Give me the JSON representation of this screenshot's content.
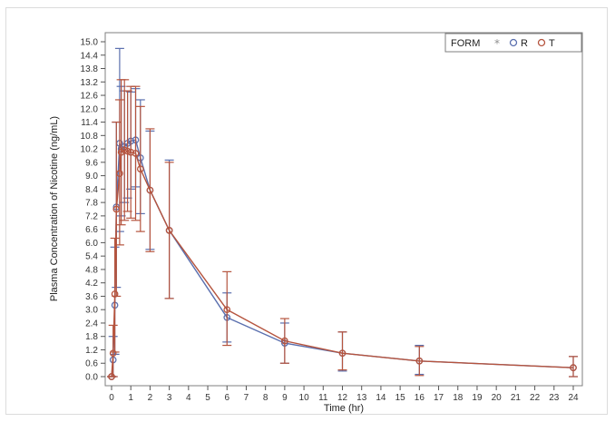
{
  "chart_data": {
    "type": "line",
    "title": "",
    "xlabel": "Time (hr)",
    "ylabel": "Plasma Concentration of Nicotine (ng/mL)",
    "xlim": [
      0,
      24
    ],
    "ylim": [
      0,
      15
    ],
    "xticks": [
      "0",
      "1",
      "2",
      "3",
      "4",
      "5",
      "6",
      "7",
      "8",
      "9",
      "10",
      "11",
      "12",
      "13",
      "14",
      "15",
      "16",
      "17",
      "18",
      "19",
      "20",
      "21",
      "22",
      "23",
      "24"
    ],
    "yticks": [
      "0.0",
      "0.6",
      "1.2",
      "1.8",
      "2.4",
      "3.0",
      "3.6",
      "4.2",
      "4.8",
      "5.4",
      "6.0",
      "6.6",
      "7.2",
      "7.8",
      "8.4",
      "9.0",
      "9.6",
      "10.2",
      "10.8",
      "11.4",
      "12.0",
      "12.6",
      "13.2",
      "13.8",
      "14.4",
      "15.0"
    ],
    "grid": false,
    "legend": {
      "title": "FORM",
      "placement": "top-right",
      "entries": [
        "R",
        "T"
      ]
    },
    "series": [
      {
        "name": "R",
        "color": "#5a6fae",
        "points": [
          {
            "x": 0.0,
            "y": 0.0,
            "lo": 0.0,
            "hi": 0.0
          },
          {
            "x": 0.08,
            "y": 0.75,
            "lo": 0.0,
            "hi": 1.8
          },
          {
            "x": 0.17,
            "y": 3.2,
            "lo": 1.0,
            "hi": 5.8
          },
          {
            "x": 0.25,
            "y": 7.6,
            "lo": 4.0,
            "hi": 11.4
          },
          {
            "x": 0.42,
            "y": 10.45,
            "lo": 6.5,
            "hi": 14.7
          },
          {
            "x": 0.5,
            "y": 10.2,
            "lo": 7.2,
            "hi": 13.0
          },
          {
            "x": 0.67,
            "y": 10.3,
            "lo": 7.8,
            "hi": 12.8
          },
          {
            "x": 0.83,
            "y": 10.45,
            "lo": 8.0,
            "hi": 12.8
          },
          {
            "x": 1.0,
            "y": 10.55,
            "lo": 8.4,
            "hi": 12.75
          },
          {
            "x": 1.25,
            "y": 10.6,
            "lo": 8.5,
            "hi": 12.9
          },
          {
            "x": 1.5,
            "y": 9.8,
            "lo": 7.3,
            "hi": 12.4
          },
          {
            "x": 2.0,
            "y": 8.35,
            "lo": 5.7,
            "hi": 11.0
          },
          {
            "x": 3.0,
            "y": 6.55,
            "lo": 3.5,
            "hi": 9.7
          },
          {
            "x": 6.0,
            "y": 2.65,
            "lo": 1.55,
            "hi": 3.75
          },
          {
            "x": 9.0,
            "y": 1.5,
            "lo": 0.6,
            "hi": 2.4
          },
          {
            "x": 12.0,
            "y": 1.05,
            "lo": 0.25,
            "hi": 2.0
          },
          {
            "x": 16.0,
            "y": 0.7,
            "lo": 0.1,
            "hi": 1.4
          },
          {
            "x": 24.0,
            "y": 0.4,
            "lo": 0.0,
            "hi": 0.9
          }
        ]
      },
      {
        "name": "T",
        "color": "#b5543e",
        "points": [
          {
            "x": 0.0,
            "y": 0.0,
            "lo": 0.0,
            "hi": 0.0
          },
          {
            "x": 0.08,
            "y": 1.05,
            "lo": 0.0,
            "hi": 2.3
          },
          {
            "x": 0.17,
            "y": 3.7,
            "lo": 1.1,
            "hi": 6.2
          },
          {
            "x": 0.25,
            "y": 7.5,
            "lo": 3.6,
            "hi": 11.4
          },
          {
            "x": 0.42,
            "y": 9.1,
            "lo": 5.9,
            "hi": 12.4
          },
          {
            "x": 0.5,
            "y": 10.05,
            "lo": 6.8,
            "hi": 13.3
          },
          {
            "x": 0.67,
            "y": 10.15,
            "lo": 7.0,
            "hi": 13.3
          },
          {
            "x": 0.83,
            "y": 10.1,
            "lo": 7.4,
            "hi": 12.8
          },
          {
            "x": 1.0,
            "y": 10.05,
            "lo": 7.1,
            "hi": 13.0
          },
          {
            "x": 1.25,
            "y": 10.0,
            "lo": 7.0,
            "hi": 13.0
          },
          {
            "x": 1.5,
            "y": 9.3,
            "lo": 6.5,
            "hi": 12.1
          },
          {
            "x": 2.0,
            "y": 8.35,
            "lo": 5.6,
            "hi": 11.1
          },
          {
            "x": 3.0,
            "y": 6.55,
            "lo": 3.5,
            "hi": 9.6
          },
          {
            "x": 6.0,
            "y": 3.0,
            "lo": 1.4,
            "hi": 4.7
          },
          {
            "x": 9.0,
            "y": 1.6,
            "lo": 0.6,
            "hi": 2.6
          },
          {
            "x": 12.0,
            "y": 1.05,
            "lo": 0.3,
            "hi": 2.0
          },
          {
            "x": 16.0,
            "y": 0.7,
            "lo": 0.05,
            "hi": 1.35
          },
          {
            "x": 24.0,
            "y": 0.4,
            "lo": 0.0,
            "hi": 0.9
          }
        ]
      }
    ]
  }
}
